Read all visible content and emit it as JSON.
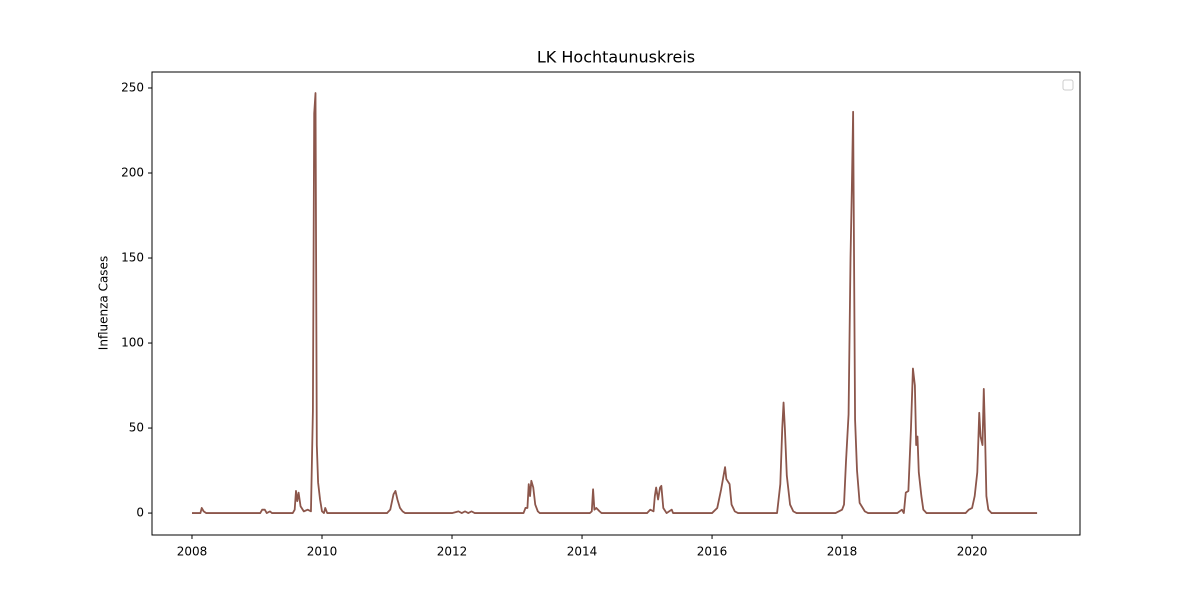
{
  "chart_data": {
    "type": "line",
    "title": "LK Hochtaunuskreis",
    "ylabel": "Influenza Cases",
    "color": "#8c564b",
    "x": [
      2008.0,
      2008.13,
      2008.15,
      2008.18,
      2008.22,
      2009.05,
      2009.08,
      2009.12,
      2009.15,
      2009.2,
      2009.23,
      2009.55,
      2009.58,
      2009.6,
      2009.62,
      2009.64,
      2009.67,
      2009.72,
      2009.78,
      2009.83,
      2009.86,
      2009.88,
      2009.9,
      2009.92,
      2009.94,
      2009.97,
      2010.0,
      2010.03,
      2010.05,
      2010.08,
      2011.0,
      2011.05,
      2011.1,
      2011.13,
      2011.16,
      2011.2,
      2011.24,
      2011.28,
      2012.0,
      2012.1,
      2012.15,
      2012.2,
      2012.25,
      2012.3,
      2012.35,
      2013.1,
      2013.13,
      2013.16,
      2013.18,
      2013.2,
      2013.22,
      2013.25,
      2013.28,
      2013.32,
      2013.35,
      2014.12,
      2014.15,
      2014.17,
      2014.19,
      2014.22,
      2014.27,
      2014.3,
      2015.0,
      2015.05,
      2015.1,
      2015.12,
      2015.14,
      2015.17,
      2015.2,
      2015.22,
      2015.25,
      2015.3,
      2015.38,
      2015.4,
      2016.0,
      2016.08,
      2016.14,
      2016.2,
      2016.22,
      2016.27,
      2016.3,
      2016.35,
      2016.4,
      2017.0,
      2017.05,
      2017.08,
      2017.1,
      2017.12,
      2017.15,
      2017.2,
      2017.25,
      2017.3,
      2017.9,
      2018.0,
      2018.03,
      2018.06,
      2018.1,
      2018.13,
      2018.15,
      2018.17,
      2018.2,
      2018.23,
      2018.27,
      2018.35,
      2018.4,
      2018.85,
      2018.92,
      2018.95,
      2018.98,
      2019.02,
      2019.06,
      2019.09,
      2019.12,
      2019.14,
      2019.16,
      2019.18,
      2019.22,
      2019.25,
      2019.3,
      2019.9,
      2019.95,
      2020.0,
      2020.04,
      2020.08,
      2020.11,
      2020.13,
      2020.16,
      2020.18,
      2020.2,
      2020.22,
      2020.25,
      2020.3,
      2021.0
    ],
    "values": [
      0,
      0,
      3,
      1,
      0,
      0,
      2,
      2,
      0,
      1,
      0,
      0,
      2,
      13,
      7,
      12,
      4,
      1,
      2,
      1,
      60,
      235,
      247,
      40,
      18,
      8,
      1,
      0,
      3,
      0,
      0,
      2,
      11,
      13,
      8,
      3,
      1,
      0,
      0,
      1,
      0,
      1,
      0,
      1,
      0,
      0,
      3,
      3,
      17,
      10,
      19,
      15,
      5,
      1,
      0,
      0,
      1,
      14,
      2,
      3,
      1,
      0,
      0,
      2,
      1,
      10,
      15,
      8,
      15,
      16,
      3,
      0,
      2,
      0,
      0,
      3,
      14,
      27,
      20,
      17,
      5,
      1,
      0,
      0,
      17,
      50,
      65,
      50,
      22,
      5,
      1,
      0,
      0,
      2,
      5,
      30,
      58,
      150,
      190,
      236,
      55,
      25,
      6,
      1,
      0,
      0,
      2,
      0,
      12,
      13,
      50,
      85,
      75,
      40,
      45,
      24,
      10,
      2,
      0,
      0,
      2,
      3,
      10,
      24,
      59,
      45,
      40,
      73,
      45,
      10,
      2,
      0,
      0
    ],
    "xlim": [
      2007.385,
      2021.66
    ],
    "xticks": [
      2008,
      2010,
      2012,
      2014,
      2016,
      2018,
      2020
    ],
    "ylim": [
      -12.9,
      259.4
    ],
    "yticks": [
      0,
      50,
      100,
      150,
      200,
      250
    ]
  }
}
